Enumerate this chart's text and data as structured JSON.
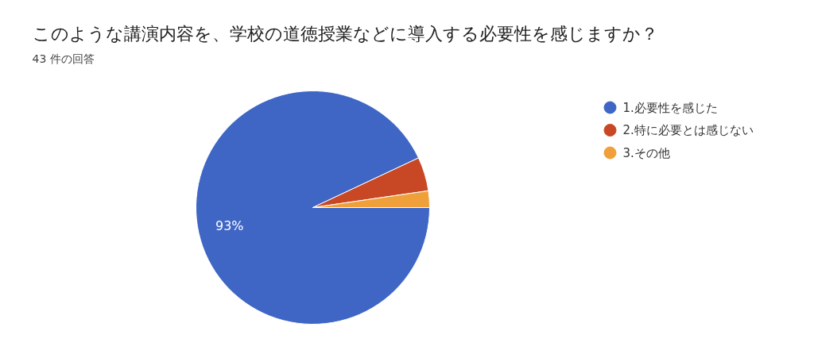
{
  "chart_data": {
    "type": "pie",
    "title": "このような講演内容を、学校の道徳授業などに導入する必要性を感じますか？",
    "subtitle": "43 件の回答",
    "categories": [
      "1.必要性を感じた",
      "2.特に必要とは感じない",
      "3.その他"
    ],
    "values": [
      93.0,
      4.7,
      2.3
    ],
    "colors": [
      "#3f66c5",
      "#c84826",
      "#f0a03a"
    ],
    "value_labels": [
      "93%",
      null,
      null
    ],
    "legend": "right"
  }
}
